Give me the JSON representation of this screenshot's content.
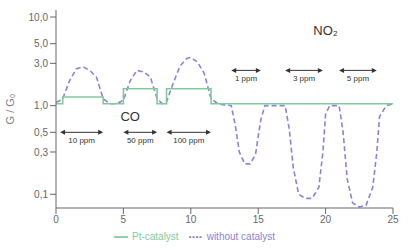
{
  "chart_data": {
    "type": "line",
    "log": "y",
    "xlim": [
      0,
      25
    ],
    "xticks": [
      0,
      5,
      10,
      15,
      20,
      25
    ],
    "ylim": [
      0.07,
      12
    ],
    "yticks": [
      {
        "value": 0.1,
        "label": "0,1"
      },
      {
        "value": 0.3,
        "label": "0,3"
      },
      {
        "value": 0.5,
        "label": "0,5"
      },
      {
        "value": 1.0,
        "label": "1,0"
      },
      {
        "value": 3.0,
        "label": "3,0"
      },
      {
        "value": 5.0,
        "label": "5,0"
      },
      {
        "value": 10.0,
        "label": "10,0"
      }
    ],
    "y_label": "G / G₀",
    "legend": "bottom",
    "series": [
      {
        "name": "without catalyst",
        "color": "#8884d8",
        "line_style": "dashed",
        "x": [
          0,
          0.2,
          0.5,
          1.0,
          1.5,
          2.0,
          2.5,
          3.0,
          3.5,
          4.0,
          4.5,
          5.0,
          5.5,
          6.0,
          6.5,
          7.0,
          7.5,
          7.9,
          8.2,
          8.7,
          9.2,
          9.7,
          10.0,
          10.5,
          11.0,
          11.5,
          12.0,
          12.5,
          13.0,
          13.3,
          13.6,
          14.0,
          14.4,
          14.8,
          15.0,
          15.2,
          15.5,
          15.8,
          16.2,
          16.5,
          17.0,
          17.3,
          17.6,
          18.0,
          18.5,
          19.0,
          19.5,
          19.8,
          20.0,
          20.3,
          20.6,
          21.0,
          21.3,
          21.6,
          22.0,
          22.5,
          23.0,
          23.5,
          23.8,
          24.0,
          24.5,
          25
        ],
        "values": [
          1.1,
          1.12,
          1.2,
          1.9,
          2.6,
          2.75,
          2.5,
          2.1,
          1.2,
          1.05,
          1.05,
          1.15,
          1.9,
          2.5,
          2.4,
          2.1,
          1.2,
          1.05,
          1.1,
          1.8,
          2.8,
          3.4,
          3.5,
          3.1,
          2.3,
          1.2,
          1.05,
          1.02,
          1.0,
          0.6,
          0.3,
          0.22,
          0.22,
          0.28,
          0.45,
          0.7,
          1.0,
          1.0,
          1.0,
          1.0,
          1.0,
          0.55,
          0.2,
          0.1,
          0.09,
          0.09,
          0.12,
          0.3,
          0.8,
          1.0,
          1.0,
          1.0,
          0.5,
          0.15,
          0.08,
          0.072,
          0.075,
          0.12,
          0.3,
          0.75,
          1.0,
          1.05
        ]
      },
      {
        "name": "Pt-catalyst",
        "color": "#82ca9d",
        "line_style": "solid",
        "x": [
          0,
          0.5,
          0.5,
          3.5,
          3.5,
          4.5,
          4.5,
          5.0,
          5.0,
          7.5,
          7.5,
          8.2,
          8.2,
          11.5,
          11.5,
          12.2,
          12.2,
          25
        ],
        "values": [
          1.05,
          1.05,
          1.25,
          1.25,
          1.05,
          1.05,
          1.05,
          1.05,
          1.55,
          1.55,
          1.05,
          1.05,
          1.55,
          1.55,
          1.05,
          1.05,
          1.05,
          1.05
        ]
      }
    ],
    "annotations": [
      {
        "text": "CO",
        "x": 5.5,
        "y": 0.75
      },
      {
        "text": "NO₂",
        "x": 20.0,
        "y": 7.0
      }
    ],
    "arrows": [
      {
        "text": "10 ppm",
        "x": [
          0.3,
          3.5
        ],
        "y": 0.5
      },
      {
        "text": "50 ppm",
        "x": [
          5.0,
          7.5
        ],
        "y": 0.5
      },
      {
        "text": "100 ppm",
        "x": [
          8.2,
          11.5
        ],
        "y": 0.5
      },
      {
        "text": "1 ppm",
        "x": [
          13.0,
          15.2
        ],
        "y": 2.5
      },
      {
        "text": "3 ppm",
        "x": [
          17.0,
          19.8
        ],
        "y": 2.5
      },
      {
        "text": "5 ppm",
        "x": [
          21.0,
          23.8
        ],
        "y": 2.5
      }
    ]
  }
}
